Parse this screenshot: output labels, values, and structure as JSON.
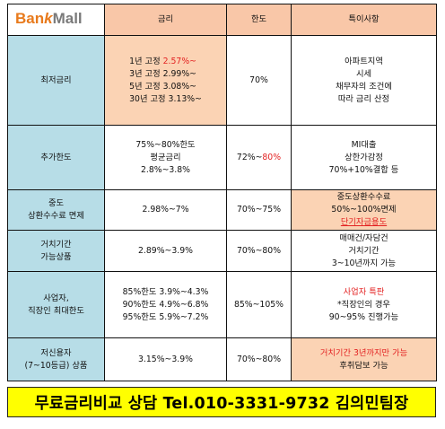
{
  "logo": {
    "part1": "Ban",
    "part2": "k",
    "part3": "Mall"
  },
  "header": {
    "col_rate": "금리",
    "col_limit": "한도",
    "col_notes": "특이사항"
  },
  "rows": [
    {
      "label": "최저금리",
      "rates": [
        {
          "prefix": "1년 고정 ",
          "value": "2.57%~"
        },
        {
          "prefix": "3년 고정 ",
          "value": "2.99%~"
        },
        {
          "prefix": "5년 고정 ",
          "value": "3.08%~"
        },
        {
          "prefix": "30년 고정 ",
          "value": "3.13%~"
        }
      ],
      "limit": "70%",
      "notes": [
        "아파트지역",
        "시세",
        "채무자의 조건에",
        "따라 금리 산정"
      ]
    },
    {
      "label": "추가한도",
      "rates": [
        "75%~80%한도",
        "평균금리",
        "2.8%~3.8%"
      ],
      "limit_prefix": "72%~",
      "limit_highlight": "80%",
      "notes": [
        "MI대출",
        "상한가감정",
        "70%+10%결합 등"
      ]
    },
    {
      "label_lines": [
        "중도",
        "상환수수료 면제"
      ],
      "rate": "2.98%~7%",
      "limit": "70%~75%",
      "notes": [
        "중도상환수수료",
        "50%~100%면제"
      ],
      "notes_link": "단기자금용도"
    },
    {
      "label_lines": [
        "거치기간",
        "가능상품"
      ],
      "rate": "2.89%~3.9%",
      "limit": "70%~80%",
      "notes": [
        "매매건/자담건",
        "거치기간",
        "3~10년까지 가능"
      ]
    },
    {
      "label_lines": [
        "사업자,",
        "직장인 최대한도"
      ],
      "rates": [
        "85%한도 3.9%~4.3%",
        "90%한도 4.9%~6.8%",
        "95%한도 5.9%~7.2%"
      ],
      "limit": "85%~105%",
      "notes_highlight": "사업자 특판",
      "notes": [
        "*직장인의 경우",
        "90~95% 진행가능"
      ]
    },
    {
      "label_lines": [
        "저신용자",
        "(7~10등급) 상품"
      ],
      "rate": "3.15%~3.9%",
      "limit": "70%~80%",
      "notes_highlight": "거치기간 3년까지만 가능",
      "notes": [
        "후취담보 가능"
      ]
    }
  ],
  "banner": "무료금리비교 상담 Tel.010-3331-9732 김의민팀장"
}
